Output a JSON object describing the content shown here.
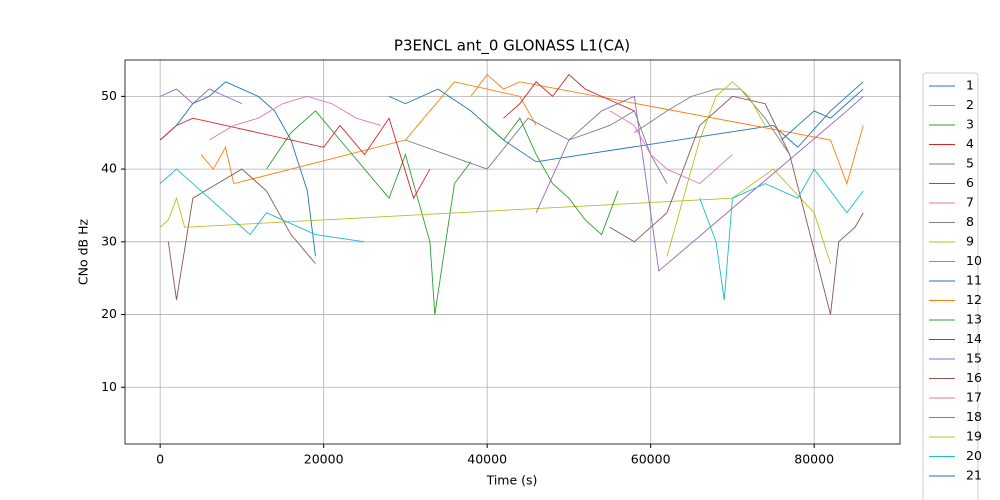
{
  "chart_data": {
    "type": "line",
    "title": "P3ENCL ant_0 GLONASS L1(CA)",
    "xlabel": "Time (s)",
    "ylabel": "CNo dB Hz",
    "xlim": [
      -4300,
      90500
    ],
    "ylim": [
      2.2,
      55
    ],
    "xticks": [
      0,
      20000,
      40000,
      60000,
      80000
    ],
    "yticks": [
      10,
      20,
      30,
      40,
      50
    ],
    "grid": true,
    "series": [
      {
        "name": "1",
        "color": "#1f77b4",
        "x": [
          0,
          2000,
          4000,
          6000,
          8000,
          10000,
          12000,
          14000,
          16000,
          18000,
          19000
        ],
        "values": [
          44,
          46,
          49,
          50,
          52,
          51,
          50,
          48,
          44,
          37,
          28
        ]
      },
      {
        "name": "2",
        "color": "#ff7f0e",
        "x": [
          5000,
          6500,
          8000,
          9000,
          30000,
          33000,
          36000,
          40000,
          44000,
          46000
        ],
        "values": [
          42,
          40,
          43,
          38,
          44,
          48,
          52,
          51,
          50,
          46
        ]
      },
      {
        "name": "3",
        "color": "#2ca02c",
        "x": [
          13000,
          16000,
          19000,
          22000,
          25000,
          28000,
          30000,
          33000,
          33600,
          36000,
          38000
        ],
        "values": [
          40,
          45,
          48,
          44,
          40,
          36,
          42,
          30,
          20,
          38,
          41
        ]
      },
      {
        "name": "4",
        "color": "#d62728",
        "x": [
          0,
          2000,
          4000,
          20000,
          22000,
          25000,
          28000,
          31000,
          33000
        ],
        "values": [
          44,
          46,
          47,
          43,
          46,
          42,
          47,
          36,
          40
        ]
      },
      {
        "name": "5",
        "color": "#9467bd",
        "x": [
          0,
          2000,
          4000,
          6000,
          8000,
          10000
        ],
        "values": [
          50,
          51,
          49,
          51,
          50,
          49
        ]
      },
      {
        "name": "6",
        "color": "#8c564b",
        "x": [
          1000,
          2000,
          4000,
          7000,
          10000,
          13000,
          16000,
          19000
        ],
        "values": [
          30,
          22,
          36,
          38,
          40,
          37,
          31,
          27
        ]
      },
      {
        "name": "7",
        "color": "#e377c2",
        "x": [
          6000,
          9000,
          12000,
          15000,
          18000,
          21000,
          24000,
          27000
        ],
        "values": [
          44,
          46,
          47,
          49,
          50,
          49,
          47,
          46
        ]
      },
      {
        "name": "8",
        "color": "#7f7f7f",
        "x": [
          30000,
          35000,
          40000,
          45000,
          50000,
          55000,
          58000,
          60000,
          62000
        ],
        "values": [
          44,
          42,
          40,
          47,
          44,
          46,
          48,
          42,
          38
        ]
      },
      {
        "name": "9",
        "color": "#bcbd22",
        "x": [
          0,
          1000,
          2000,
          3000,
          70000,
          75000,
          80000,
          82000
        ],
        "values": [
          32,
          33,
          36,
          32,
          36,
          40,
          34,
          27
        ]
      },
      {
        "name": "10",
        "color": "#17becf",
        "x": [
          0,
          2000,
          5000,
          9000,
          11000,
          13000,
          19000,
          25000
        ],
        "values": [
          38,
          40,
          37,
          33,
          31,
          34,
          31,
          30
        ]
      },
      {
        "name": "11",
        "color": "#1f77b4",
        "x": [
          28000,
          30000,
          34000,
          38000,
          42000,
          46000,
          75000,
          78000,
          82000,
          86000
        ],
        "values": [
          50,
          49,
          51,
          48,
          44,
          41,
          46,
          43,
          48,
          52
        ]
      },
      {
        "name": "12",
        "color": "#ff7f0e",
        "x": [
          38000,
          40000,
          42000,
          44000,
          82000,
          84000,
          86000
        ],
        "values": [
          50,
          53,
          51,
          52,
          44,
          38,
          46
        ]
      },
      {
        "name": "13",
        "color": "#2ca02c",
        "x": [
          40000,
          42000,
          44000,
          46000,
          48000,
          50000,
          52000,
          54000,
          56000
        ],
        "values": [
          46,
          44,
          47,
          42,
          38,
          36,
          33,
          31,
          37
        ]
      },
      {
        "name": "14",
        "color": "#d62728",
        "x": [
          42000,
          44000,
          46000,
          48000,
          50000,
          52000,
          54000,
          56000,
          58000
        ],
        "values": [
          47,
          49,
          52,
          50,
          53,
          51,
          50,
          49,
          48
        ]
      },
      {
        "name": "15",
        "color": "#9467bd",
        "x": [
          46000,
          50000,
          54000,
          58000,
          61000,
          84000,
          86000
        ],
        "values": [
          34,
          44,
          48,
          50,
          26,
          48,
          50
        ]
      },
      {
        "name": "16",
        "color": "#8c564b",
        "x": [
          55000,
          58000,
          62000,
          66000,
          70000,
          74000,
          77000,
          82000,
          83000,
          85000,
          86000
        ],
        "values": [
          32,
          30,
          34,
          46,
          50,
          49,
          42,
          20,
          30,
          32,
          34
        ]
      },
      {
        "name": "17",
        "color": "#e377c2",
        "x": [
          55000,
          58000,
          60000,
          62000,
          66000,
          68000,
          70000
        ],
        "values": [
          48,
          46,
          42,
          40,
          38,
          40,
          42
        ]
      },
      {
        "name": "18",
        "color": "#7f7f7f",
        "x": [
          58000,
          62000,
          65000,
          68000,
          71000,
          74000,
          77000
        ],
        "values": [
          45,
          48,
          50,
          51,
          51,
          47,
          42
        ]
      },
      {
        "name": "19",
        "color": "#bcbd22",
        "x": [
          62000,
          64000,
          66000,
          68000,
          70000,
          72000,
          74000
        ],
        "values": [
          28,
          36,
          44,
          50,
          52,
          50,
          46
        ]
      },
      {
        "name": "20",
        "color": "#17becf",
        "x": [
          66000,
          68000,
          69000,
          70000,
          74000,
          78000,
          80000,
          84000,
          86000
        ],
        "values": [
          36,
          30,
          22,
          36,
          38,
          36,
          40,
          34,
          37
        ]
      },
      {
        "name": "21",
        "color": "#1f77b4",
        "x": [
          76000,
          78000,
          80000,
          82000,
          84000,
          86000
        ],
        "values": [
          44,
          46,
          48,
          47,
          49,
          51
        ]
      }
    ]
  }
}
